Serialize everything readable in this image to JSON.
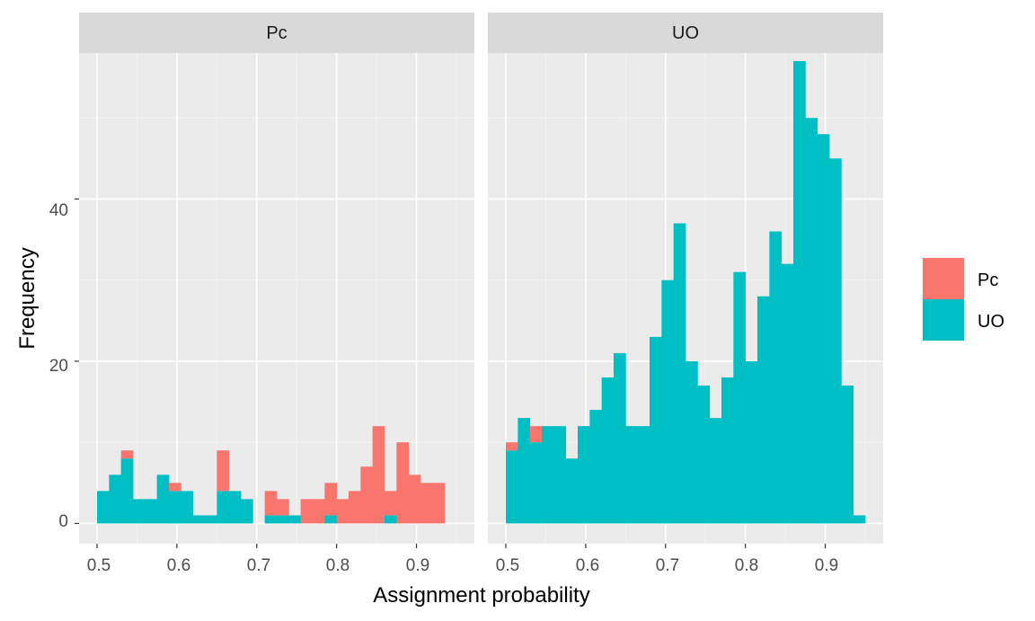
{
  "chart_data": {
    "type": "bar",
    "subtype": "stacked-histogram-faceted",
    "xlabel": "Assignment probability",
    "ylabel": "Frequency",
    "x_ticks": [
      "0.5",
      "0.6",
      "0.7",
      "0.8",
      "0.9"
    ],
    "x_tick_values": [
      0.5,
      0.6,
      0.7,
      0.8,
      0.9
    ],
    "y_ticks": [
      "0",
      "20",
      "40"
    ],
    "y_tick_values": [
      0,
      20,
      40
    ],
    "ylim": [
      -2.5,
      58
    ],
    "xlim": [
      0.4775,
      0.9725
    ],
    "bin_width": 0.015,
    "bin_starts": [
      0.5,
      0.515,
      0.53,
      0.545,
      0.56,
      0.575,
      0.59,
      0.605,
      0.62,
      0.635,
      0.65,
      0.665,
      0.68,
      0.695,
      0.71,
      0.725,
      0.74,
      0.755,
      0.77,
      0.785,
      0.8,
      0.815,
      0.83,
      0.845,
      0.86,
      0.875,
      0.89,
      0.905,
      0.92,
      0.935
    ],
    "series_colors": {
      "Pc": "#F8766D",
      "UO": "#00BFC4"
    },
    "grid": true,
    "legend_position": "right",
    "legend": [
      {
        "name": "Pc",
        "color": "#F8766D"
      },
      {
        "name": "UO",
        "color": "#00BFC4"
      }
    ],
    "panels": [
      {
        "strip": "Pc",
        "series": [
          {
            "name": "UO",
            "values": [
              4,
              6,
              8,
              3,
              3,
              6,
              4,
              4,
              1,
              1,
              4,
              4,
              3,
              0,
              1,
              1,
              1,
              0,
              0,
              1,
              0,
              0,
              0,
              0,
              1,
              0,
              0,
              0,
              0,
              0
            ]
          },
          {
            "name": "Pc",
            "values": [
              0,
              0,
              1,
              0,
              0,
              0,
              1,
              0,
              0,
              0,
              5,
              0,
              0,
              0,
              3,
              2,
              0,
              3,
              3,
              4,
              3,
              4,
              7,
              12,
              3,
              10,
              6,
              5,
              5,
              0
            ]
          }
        ]
      },
      {
        "strip": "UO",
        "series": [
          {
            "name": "UO",
            "values": [
              9,
              13,
              10,
              12,
              12,
              8,
              12,
              14,
              18,
              21,
              12,
              12,
              23,
              30,
              37,
              20,
              17,
              13,
              18,
              31,
              20,
              28,
              36,
              32,
              57,
              50,
              48,
              45,
              17,
              1
            ]
          },
          {
            "name": "Pc",
            "values": [
              1,
              0,
              2,
              0,
              0,
              0,
              0,
              0,
              0,
              0,
              0,
              0,
              0,
              0,
              0,
              0,
              0,
              0,
              0,
              0,
              0,
              0,
              0,
              0,
              0,
              0,
              0,
              0,
              0,
              0
            ]
          }
        ]
      }
    ]
  }
}
